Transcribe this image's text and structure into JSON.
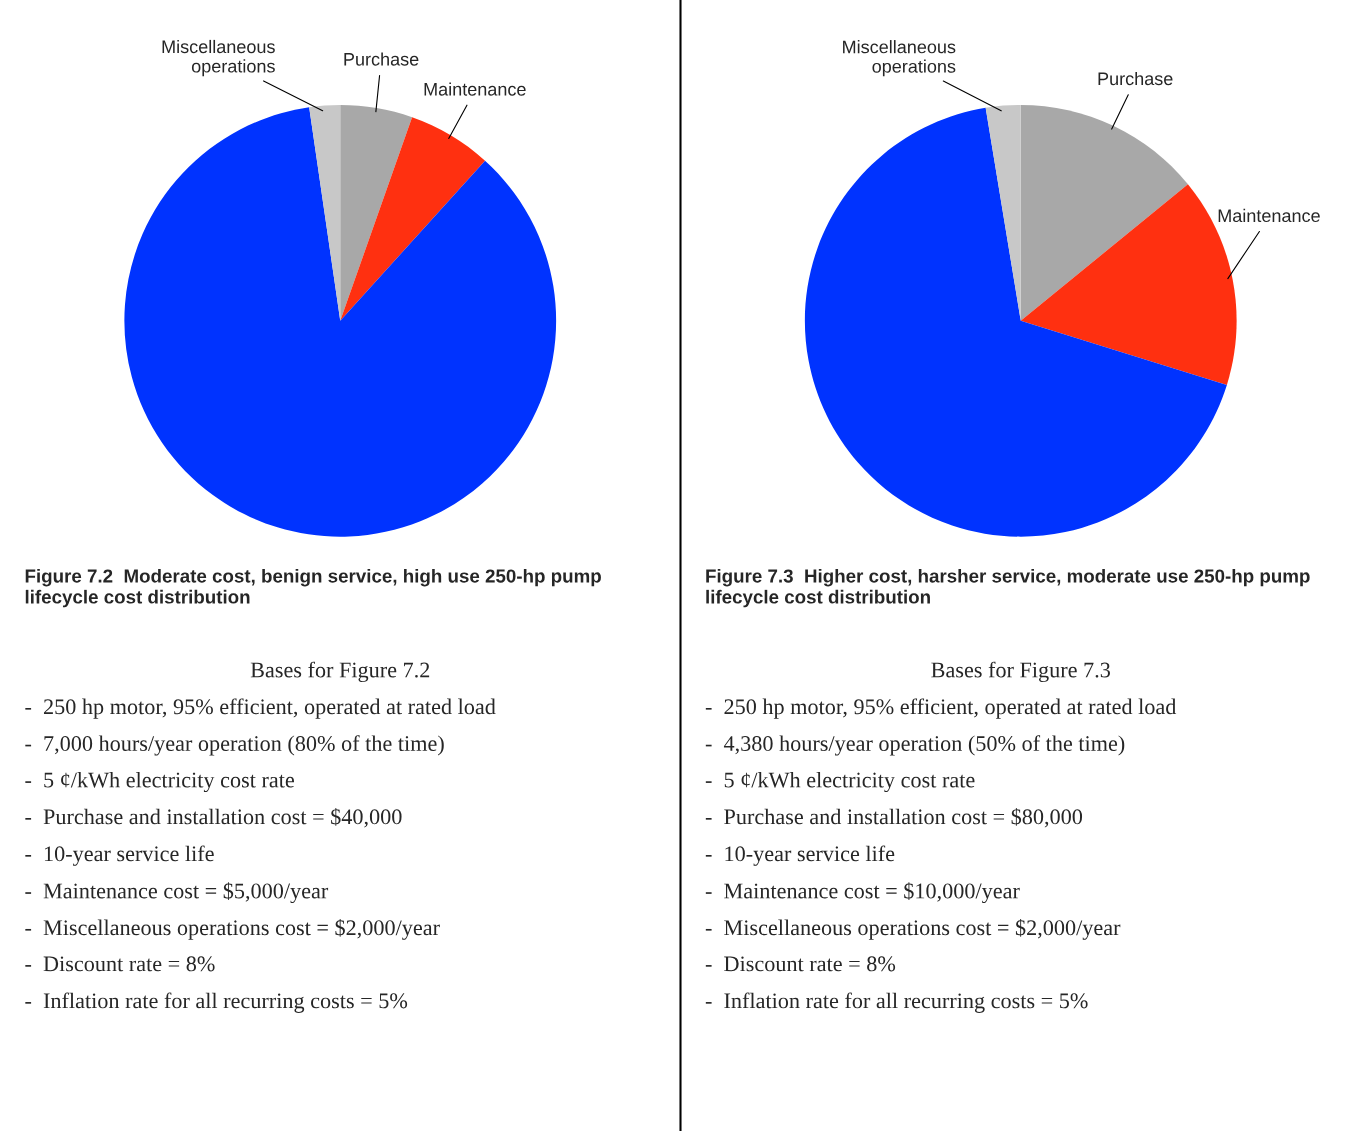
{
  "chart_data": [
    {
      "type": "pie",
      "title": "Figure 7.2  Moderate cost, benign service, high use 250-hp pump lifecycle cost distribution",
      "categories": [
        "Purchase",
        "Maintenance",
        null,
        "Miscellaneous operations"
      ],
      "values": [
        5.4,
        6.3,
        86.0,
        2.3
      ],
      "colors": [
        "#a8a8a8",
        "#ff3010",
        "#0033ff",
        "#c8c8c8"
      ],
      "annotations": [
        "Bases for Figure 7.2",
        "-  250 hp motor, 95% efficient, operated at rated load",
        "-  7,000 hours/year operation (80% of the time)",
        "-  5 ¢/kWh electricity cost rate",
        "-  Purchase and installation cost = $40,000",
        "-  10-year service life",
        "-  Maintenance cost = $5,000/year",
        "-  Miscellaneous operations cost = $2,000/year",
        "-  Discount rate = 8%",
        "-  Inflation rate for all recurring costs = 5%"
      ]
    },
    {
      "type": "pie",
      "title": "Figure 7.3  Higher cost, harsher service, moderate use 250-hp pump lifecycle cost distribution",
      "categories": [
        "Purchase",
        "Maintenance",
        null,
        "Miscellaneous operations"
      ],
      "values": [
        14.1,
        15.7,
        67.6,
        2.6
      ],
      "colors": [
        "#a8a8a8",
        "#ff3010",
        "#0033ff",
        "#c8c8c8"
      ],
      "annotations": [
        "Bases for Figure 7.3",
        "-  250 hp motor, 95% efficient, operated at rated load",
        "-  4,380 hours/year operation (50% of the time)",
        "-  5 ¢/kWh electricity cost rate",
        "-  Purchase and installation cost = $80,000",
        "-  10-year service life",
        "-  Maintenance cost = $10,000/year",
        "-  Miscellaneous operations cost = $2,000/year",
        "-  Discount rate = 8%",
        "-  Inflation rate for all recurring costs = 5%"
      ]
    }
  ]
}
